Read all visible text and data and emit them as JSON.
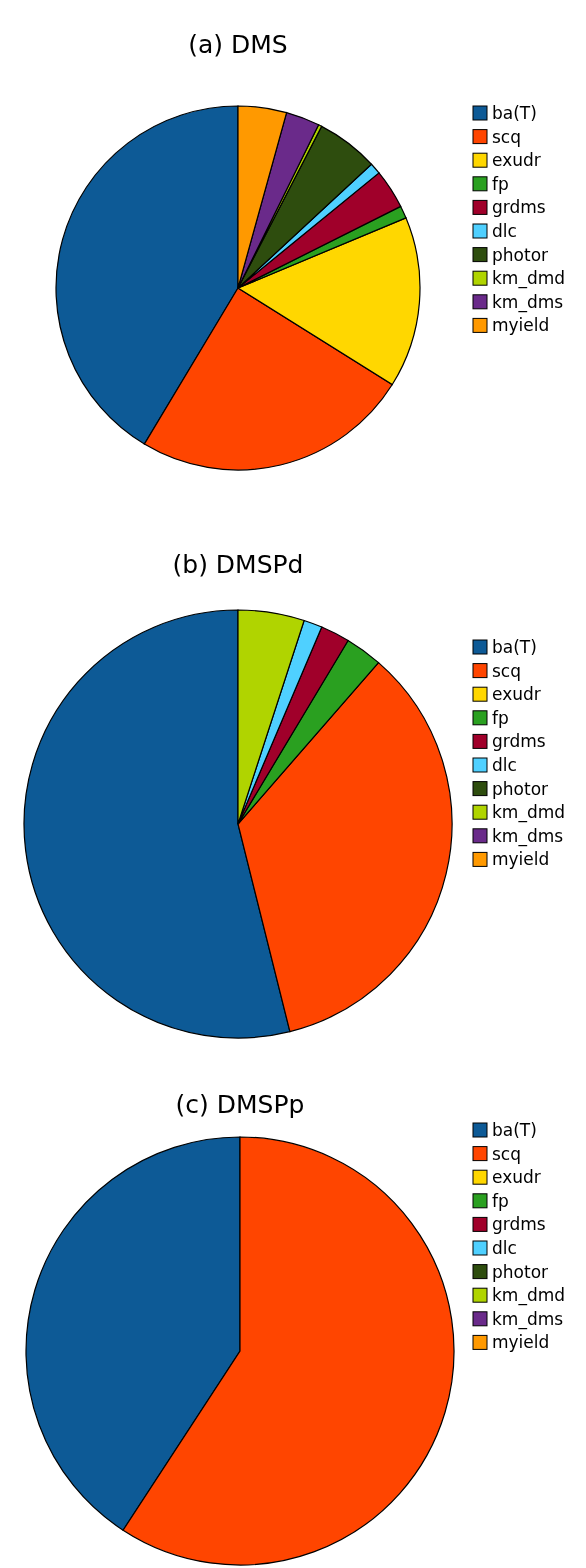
{
  "chart_data": [
    {
      "type": "pie",
      "title": "(a) DMS",
      "categories": [
        "ba(T)",
        "scq",
        "exudr",
        "fp",
        "grdms",
        "dlc",
        "photor",
        "km_dmd",
        "km_dms",
        "myield"
      ],
      "values": [
        41.4,
        24.7,
        15.2,
        1.1,
        3.5,
        1.0,
        5.5,
        0.3,
        3.0,
        4.3
      ],
      "colors": [
        "#0d5a96",
        "#ff4500",
        "#ffd700",
        "#2aa020",
        "#a0002a",
        "#4fd0ff",
        "#2e4d0e",
        "#b0d400",
        "#6a2a8a",
        "#ff9900"
      ],
      "legend": "right"
    },
    {
      "type": "pie",
      "title": "(b) DMSPd",
      "categories": [
        "ba(T)",
        "scq",
        "exudr",
        "fp",
        "grdms",
        "dlc",
        "photor",
        "km_dmd",
        "km_dms",
        "myield"
      ],
      "values": [
        53.9,
        34.7,
        0,
        2.8,
        2.2,
        1.4,
        0,
        5.0,
        0,
        0
      ],
      "colors": [
        "#0d5a96",
        "#ff4500",
        "#ffd700",
        "#2aa020",
        "#a0002a",
        "#4fd0ff",
        "#2e4d0e",
        "#b0d400",
        "#6a2a8a",
        "#ff9900"
      ],
      "legend": "right"
    },
    {
      "type": "pie",
      "title": "(c) DMSPp",
      "categories": [
        "ba(T)",
        "scq",
        "exudr",
        "fp",
        "grdms",
        "dlc",
        "photor",
        "km_dmd",
        "km_dms",
        "myield"
      ],
      "values": [
        40.8,
        59.2,
        0,
        0,
        0,
        0,
        0,
        0,
        0,
        0
      ],
      "colors": [
        "#0d5a96",
        "#ff4500",
        "#ffd700",
        "#2aa020",
        "#a0002a",
        "#4fd0ff",
        "#2e4d0e",
        "#b0d400",
        "#6a2a8a",
        "#ff9900"
      ],
      "legend": "right"
    }
  ]
}
